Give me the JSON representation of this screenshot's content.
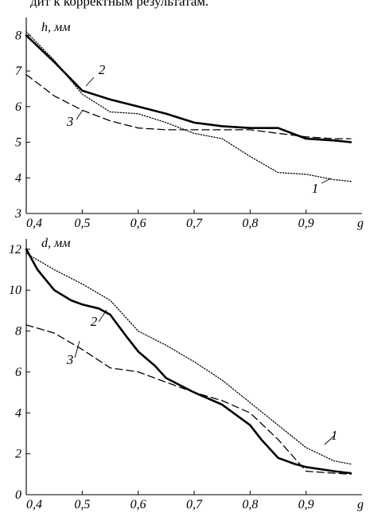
{
  "header_text": "дит к корректным результатам.",
  "chart_data": [
    {
      "type": "line",
      "ylabel": "h, мм",
      "xlabel": "g",
      "xlim": [
        0.4,
        1.0
      ],
      "ylim": [
        3,
        8.5
      ],
      "xticks": [
        0.4,
        0.5,
        0.6,
        0.7,
        0.8,
        0.9
      ],
      "xtick_labels": [
        "0,4",
        "0,5",
        "0,6",
        "0,7",
        "0,8",
        "0,9"
      ],
      "yticks": [
        3,
        4,
        5,
        6,
        7,
        8
      ],
      "ytick_labels": [
        "3",
        "4",
        "5",
        "6",
        "7",
        "8"
      ],
      "grid": false,
      "series": [
        {
          "name": "1",
          "style": "dotted",
          "x": [
            0.4,
            0.45,
            0.5,
            0.55,
            0.6,
            0.65,
            0.7,
            0.75,
            0.8,
            0.85,
            0.9,
            0.95,
            0.98
          ],
          "y": [
            8.1,
            7.3,
            6.35,
            5.85,
            5.8,
            5.55,
            5.25,
            5.1,
            4.6,
            4.15,
            4.1,
            3.95,
            3.9
          ]
        },
        {
          "name": "2",
          "style": "solid",
          "x": [
            0.4,
            0.45,
            0.5,
            0.55,
            0.6,
            0.65,
            0.7,
            0.75,
            0.8,
            0.85,
            0.9,
            0.95,
            0.98
          ],
          "y": [
            8.0,
            7.25,
            6.45,
            6.2,
            6.0,
            5.8,
            5.55,
            5.45,
            5.4,
            5.4,
            5.1,
            5.05,
            5.0
          ]
        },
        {
          "name": "3",
          "style": "dashed",
          "x": [
            0.4,
            0.45,
            0.5,
            0.55,
            0.6,
            0.65,
            0.7,
            0.75,
            0.8,
            0.85,
            0.9,
            0.95,
            0.98
          ],
          "y": [
            6.9,
            6.3,
            5.9,
            5.6,
            5.4,
            5.35,
            5.35,
            5.35,
            5.35,
            5.25,
            5.15,
            5.1,
            5.1
          ]
        }
      ]
    },
    {
      "type": "line",
      "ylabel": "d, мм",
      "xlabel": "g",
      "xlim": [
        0.4,
        1.0
      ],
      "ylim": [
        0,
        12.5
      ],
      "xticks": [
        0.4,
        0.5,
        0.6,
        0.7,
        0.8,
        0.9
      ],
      "xtick_labels": [
        "0,4",
        "0,5",
        "0,6",
        "0,7",
        "0,8",
        "0,9"
      ],
      "yticks": [
        0,
        2,
        4,
        6,
        8,
        10,
        12
      ],
      "ytick_labels": [
        "0",
        "2",
        "4",
        "6",
        "8",
        "10",
        "12"
      ],
      "grid": false,
      "series": [
        {
          "name": "1",
          "style": "dotted",
          "x": [
            0.4,
            0.45,
            0.5,
            0.55,
            0.6,
            0.65,
            0.7,
            0.75,
            0.8,
            0.85,
            0.9,
            0.95,
            0.98
          ],
          "y": [
            11.8,
            11.0,
            10.3,
            9.5,
            8.0,
            7.3,
            6.5,
            5.6,
            4.5,
            3.4,
            2.3,
            1.65,
            1.5
          ]
        },
        {
          "name": "2",
          "style": "solid",
          "x": [
            0.4,
            0.42,
            0.45,
            0.48,
            0.5,
            0.53,
            0.55,
            0.58,
            0.6,
            0.63,
            0.65,
            0.7,
            0.75,
            0.8,
            0.82,
            0.85,
            0.88,
            0.9,
            0.95,
            0.98
          ],
          "y": [
            12.0,
            11.0,
            10.0,
            9.5,
            9.3,
            9.1,
            8.8,
            7.7,
            7.0,
            6.3,
            5.7,
            5.0,
            4.4,
            3.4,
            2.7,
            1.8,
            1.5,
            1.35,
            1.15,
            1.05
          ]
        },
        {
          "name": "3",
          "style": "dashed",
          "x": [
            0.4,
            0.45,
            0.5,
            0.55,
            0.6,
            0.65,
            0.7,
            0.75,
            0.8,
            0.85,
            0.9,
            0.95,
            0.98
          ],
          "y": [
            8.3,
            7.9,
            7.1,
            6.2,
            6.0,
            5.5,
            5.0,
            4.6,
            4.0,
            2.7,
            1.15,
            1.05,
            1.0
          ]
        }
      ]
    }
  ]
}
